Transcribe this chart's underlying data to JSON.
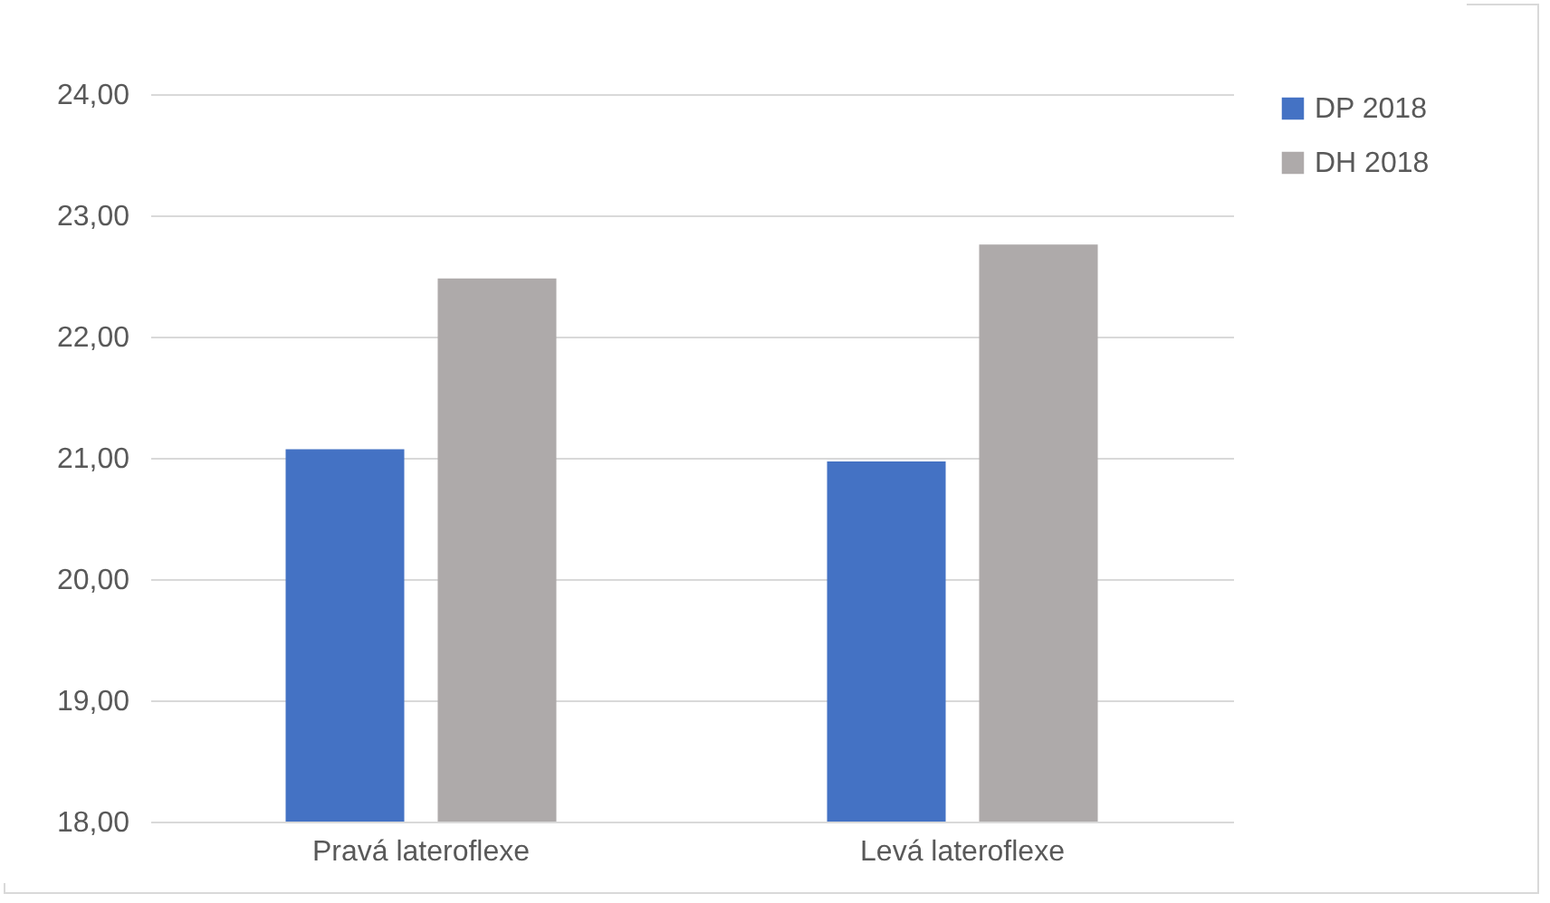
{
  "chart_data": {
    "type": "bar",
    "categories": [
      "Pravá lateroflexe",
      "Levá lateroflexe"
    ],
    "series": [
      {
        "name": "DP 2018",
        "color": "#4472c4",
        "values": [
          21.07,
          20.97
        ]
      },
      {
        "name": "DH 2018",
        "color": "#aeaaaa",
        "values": [
          22.48,
          22.76
        ]
      }
    ],
    "ylim": [
      18,
      24
    ],
    "yticks": [
      {
        "value": 18,
        "label": "18,00"
      },
      {
        "value": 19,
        "label": "19,00"
      },
      {
        "value": 20,
        "label": "20,00"
      },
      {
        "value": 21,
        "label": "21,00"
      },
      {
        "value": 22,
        "label": "22,00"
      },
      {
        "value": 23,
        "label": "23,00"
      },
      {
        "value": 24,
        "label": "24,00"
      }
    ],
    "grid": "y",
    "legend": "right"
  }
}
